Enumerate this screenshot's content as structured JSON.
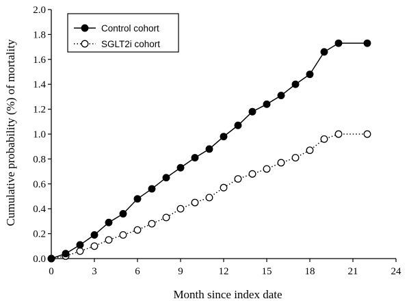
{
  "chart_data": {
    "type": "line",
    "xlabel": "Month since index date",
    "ylabel": "Cumulative probability (%) of mortality",
    "xlim": [
      0,
      24
    ],
    "ylim": [
      0,
      2.0
    ],
    "xticks": [
      "0",
      "3",
      "6",
      "9",
      "12",
      "15",
      "18",
      "21",
      "24"
    ],
    "yticks": [
      "0.0",
      "0.2",
      "0.4",
      "0.6",
      "0.8",
      "1.0",
      "1.2",
      "1.4",
      "1.6",
      "1.8",
      "2.0"
    ],
    "grid": false,
    "legend_position": "top-left",
    "series": [
      {
        "name": "Control cohort",
        "marker": "filled-circle",
        "line": "solid",
        "x": [
          0,
          1,
          2,
          3,
          4,
          5,
          6,
          7,
          8,
          9,
          10,
          11,
          12,
          13,
          14,
          15,
          16,
          17,
          18,
          19,
          20,
          22
        ],
        "y": [
          0.0,
          0.04,
          0.11,
          0.19,
          0.29,
          0.36,
          0.48,
          0.56,
          0.65,
          0.73,
          0.81,
          0.88,
          0.98,
          1.07,
          1.18,
          1.24,
          1.31,
          1.4,
          1.48,
          1.66,
          1.73,
          1.73
        ]
      },
      {
        "name": "SGLT2i cohort",
        "marker": "open-circle",
        "line": "dotted",
        "x": [
          0,
          1,
          2,
          3,
          4,
          5,
          6,
          7,
          8,
          9,
          10,
          11,
          12,
          13,
          14,
          15,
          16,
          17,
          18,
          19,
          20,
          22
        ],
        "y": [
          0.0,
          0.02,
          0.06,
          0.1,
          0.15,
          0.19,
          0.23,
          0.28,
          0.33,
          0.4,
          0.45,
          0.49,
          0.57,
          0.64,
          0.68,
          0.72,
          0.77,
          0.81,
          0.87,
          0.96,
          1.0,
          1.0
        ]
      }
    ]
  }
}
